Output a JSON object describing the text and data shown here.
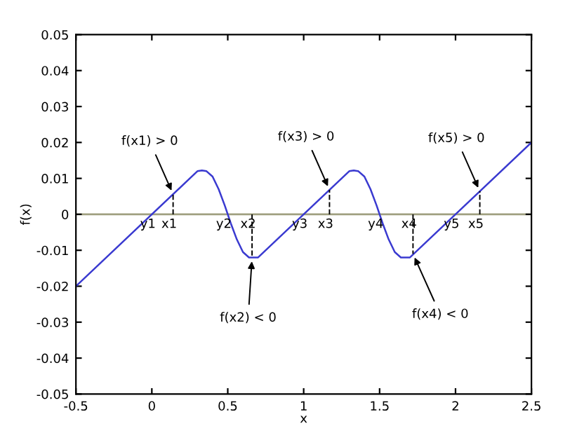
{
  "chart_data": {
    "type": "line",
    "xlabel": "x",
    "ylabel": "f(x)",
    "xlim": [
      -0.5,
      2.5
    ],
    "ylim": [
      -0.05,
      0.05
    ],
    "xticks": [
      -0.5,
      0,
      0.5,
      1,
      1.5,
      2,
      2.5
    ],
    "yticks": [
      -0.05,
      -0.04,
      -0.03,
      -0.02,
      -0.01,
      0,
      0.01,
      0.02,
      0.03,
      0.04,
      0.05
    ],
    "grid": false,
    "marker": "none",
    "series": [
      {
        "color": "#3a3ad0",
        "line_style": "solid",
        "x": [
          -0.5,
          0.3,
          0.33,
          0.36,
          0.4,
          0.44,
          0.48,
          0.5,
          0.52,
          0.56,
          0.6,
          0.64,
          0.7,
          1.3,
          1.33,
          1.36,
          1.4,
          1.44,
          1.48,
          1.5,
          1.52,
          1.56,
          1.6,
          1.64,
          1.7,
          2.5
        ],
        "values": [
          -0.02,
          0.012,
          0.0122,
          0.012,
          0.0105,
          0.007,
          0.0025,
          0,
          -0.0025,
          -0.007,
          -0.0105,
          -0.012,
          -0.012,
          0.012,
          0.0122,
          0.012,
          0.0105,
          0.007,
          0.0025,
          0,
          -0.0025,
          -0.007,
          -0.0105,
          -0.012,
          -0.012,
          0.02
        ]
      },
      {
        "color": "#000000",
        "line_style": "dashed",
        "x": [
          0.14,
          0.14
        ],
        "values": [
          0,
          0.0056
        ]
      },
      {
        "color": "#000000",
        "line_style": "dashed",
        "x": [
          0.66,
          0.66
        ],
        "values": [
          0,
          -0.012
        ]
      },
      {
        "color": "#000000",
        "line_style": "dashed",
        "x": [
          1.17,
          1.17
        ],
        "values": [
          0,
          0.0068
        ]
      },
      {
        "color": "#000000",
        "line_style": "dashed",
        "x": [
          1.72,
          1.72
        ],
        "values": [
          0,
          -0.011
        ]
      },
      {
        "color": "#000000",
        "line_style": "dashed",
        "x": [
          2.16,
          2.16
        ],
        "values": [
          0,
          0.0064
        ]
      }
    ],
    "ref_lines": [
      {
        "axis": "y",
        "value": 0,
        "color": "#a0a080"
      }
    ],
    "annotations": [
      {
        "text": "f(x1) > 0",
        "x": 0.14,
        "y": 0.0056
      },
      {
        "text": "f(x2) < 0",
        "x": 0.66,
        "y": -0.012
      },
      {
        "text": "f(x3) > 0",
        "x": 1.17,
        "y": 0.0068
      },
      {
        "text": "f(x4) < 0",
        "x": 1.72,
        "y": -0.011
      },
      {
        "text": "f(x5) > 0",
        "x": 2.16,
        "y": 0.0064
      },
      {
        "text": "y1",
        "x": 0,
        "y": 0
      },
      {
        "text": "x1",
        "x": 0.14,
        "y": 0
      },
      {
        "text": "y2",
        "x": 0.5,
        "y": 0
      },
      {
        "text": "x2",
        "x": 0.66,
        "y": 0
      },
      {
        "text": "y3",
        "x": 1,
        "y": 0
      },
      {
        "text": "x3",
        "x": 1.17,
        "y": 0
      },
      {
        "text": "y4",
        "x": 1.5,
        "y": 0
      },
      {
        "text": "x4",
        "x": 1.72,
        "y": 0
      },
      {
        "text": "y5",
        "x": 2,
        "y": 0
      },
      {
        "text": "x5",
        "x": 2.16,
        "y": 0
      }
    ]
  }
}
